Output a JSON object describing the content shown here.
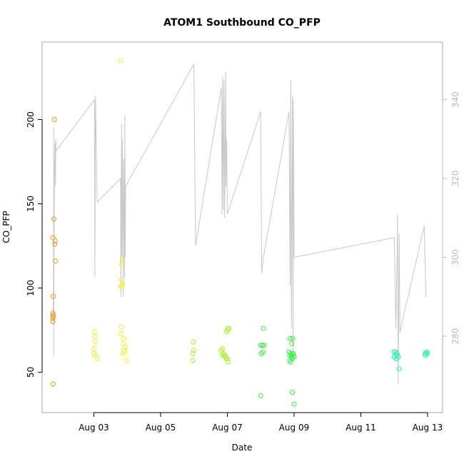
{
  "chart_data": {
    "type": "scatter",
    "title": "ATOM1 Southbound CO_PFP",
    "xlabel": "Date",
    "ylabel": "CO_PFP",
    "x_ticks": [
      "Aug 03",
      "Aug 05",
      "Aug 07",
      "Aug 09",
      "Aug 11",
      "Aug 13"
    ],
    "x_tick_days": [
      3,
      5,
      7,
      9,
      11,
      13
    ],
    "x_range": [
      1.45,
      13.45
    ],
    "y_ticks": [
      50,
      100,
      150,
      200
    ],
    "y_range": [
      26,
      246
    ],
    "y2_ticks": [
      280,
      300,
      320,
      340
    ],
    "y2_range": [
      260.6,
      354.6
    ],
    "grid": false,
    "colors": {
      "axis": "#000000",
      "frame": "#aaaaaa",
      "line": "#c8c8c8",
      "secondary_axis": "#bbbbbb"
    },
    "series": [
      {
        "color": "#e8961e",
        "points": [
          [
            1.78,
            43
          ],
          [
            1.77,
            80
          ],
          [
            1.77,
            82
          ],
          [
            1.78,
            83
          ],
          [
            1.78,
            84
          ],
          [
            1.77,
            85
          ],
          [
            1.78,
            95
          ],
          [
            1.85,
            116
          ],
          [
            1.83,
            126
          ],
          [
            1.84,
            128
          ],
          [
            1.77,
            130
          ],
          [
            1.8,
            141
          ],
          [
            1.82,
            200
          ]
        ]
      },
      {
        "color": "#eef032",
        "points": [
          [
            3.02,
            74
          ],
          [
            3.03,
            71
          ],
          [
            3.05,
            68
          ],
          [
            3.0,
            64
          ],
          [
            3.0,
            61
          ],
          [
            3.05,
            60
          ],
          [
            3.1,
            58
          ],
          [
            3.8,
            235
          ],
          [
            3.85,
            117
          ],
          [
            3.83,
            114
          ],
          [
            3.82,
            105
          ],
          [
            3.8,
            101
          ],
          [
            3.83,
            101
          ],
          [
            3.87,
            102
          ],
          [
            3.82,
            77
          ],
          [
            3.8,
            73
          ],
          [
            3.9,
            70
          ],
          [
            3.88,
            67
          ],
          [
            3.95,
            65
          ],
          [
            3.9,
            63
          ],
          [
            3.93,
            62
          ],
          [
            3.87,
            61
          ],
          [
            3.98,
            57
          ]
        ]
      },
      {
        "color": "#a8f030",
        "points": [
          [
            5.98,
            68
          ],
          [
            5.99,
            63
          ],
          [
            5.97,
            61
          ],
          [
            5.96,
            57
          ],
          [
            6.82,
            63
          ],
          [
            6.86,
            64
          ],
          [
            6.88,
            61
          ],
          [
            6.85,
            60
          ],
          [
            6.9,
            60
          ],
          [
            6.95,
            59
          ],
          [
            6.93,
            60
          ],
          [
            7.0,
            58
          ],
          [
            6.97,
            58
          ],
          [
            7.02,
            56
          ],
          [
            7.0,
            75
          ],
          [
            7.05,
            76
          ],
          [
            7.03,
            76
          ],
          [
            6.98,
            74
          ]
        ]
      },
      {
        "color": "#38f040",
        "points": [
          [
            8.0,
            36
          ],
          [
            8.08,
            76
          ],
          [
            8.05,
            66
          ],
          [
            8.0,
            66
          ],
          [
            8.1,
            66
          ],
          [
            8.02,
            61
          ],
          [
            8.07,
            62
          ],
          [
            8.88,
            70
          ],
          [
            8.95,
            70
          ],
          [
            8.93,
            67
          ],
          [
            8.85,
            62
          ],
          [
            8.9,
            61
          ],
          [
            8.87,
            60
          ],
          [
            8.93,
            60
          ],
          [
            8.97,
            61
          ],
          [
            8.92,
            59
          ],
          [
            8.95,
            58
          ],
          [
            8.87,
            57
          ],
          [
            8.9,
            56
          ],
          [
            8.95,
            38
          ],
          [
            9.0,
            31
          ],
          [
            9.0,
            59
          ],
          [
            8.98,
            60
          ],
          [
            8.97,
            61
          ]
        ]
      },
      {
        "color": "#2ef0b4",
        "points": [
          [
            12.0,
            62
          ],
          [
            12.05,
            62
          ],
          [
            12.08,
            61
          ],
          [
            12.03,
            60
          ],
          [
            12.1,
            60
          ],
          [
            12.0,
            59
          ],
          [
            12.06,
            58
          ],
          [
            12.12,
            59
          ],
          [
            12.15,
            52
          ],
          [
            12.93,
            60
          ],
          [
            12.95,
            61
          ],
          [
            12.97,
            62
          ],
          [
            13.0,
            61
          ],
          [
            12.98,
            62
          ],
          [
            12.93,
            61
          ]
        ]
      }
    ],
    "line_series": {
      "axis": "right",
      "color": "#c8c8c8",
      "points": [
        [
          1.78,
          286
        ],
        [
          1.79,
          290
        ],
        [
          1.8,
          333
        ],
        [
          1.8,
          275
        ],
        [
          1.81,
          310
        ],
        [
          1.82,
          320
        ],
        [
          1.83,
          325
        ],
        [
          1.84,
          329
        ],
        [
          1.85,
          318
        ],
        [
          1.86,
          330
        ],
        [
          1.87,
          327
        ],
        [
          3.02,
          340
        ],
        [
          3.03,
          295
        ],
        [
          3.05,
          341
        ],
        [
          3.1,
          314
        ],
        [
          3.8,
          320
        ],
        [
          3.81,
          290
        ],
        [
          3.83,
          334
        ],
        [
          3.84,
          300
        ],
        [
          3.86,
          330
        ],
        [
          3.88,
          290
        ],
        [
          3.9,
          325
        ],
        [
          3.92,
          295
        ],
        [
          3.93,
          336
        ],
        [
          3.94,
          300
        ],
        [
          3.95,
          318
        ],
        [
          6.0,
          349
        ],
        [
          6.02,
          328
        ],
        [
          6.05,
          303
        ],
        [
          6.82,
          343
        ],
        [
          6.84,
          311
        ],
        [
          6.86,
          346
        ],
        [
          6.88,
          312
        ],
        [
          6.9,
          345
        ],
        [
          6.92,
          310
        ],
        [
          6.95,
          347
        ],
        [
          6.96,
          318
        ],
        [
          6.98,
          330
        ],
        [
          7.0,
          311
        ],
        [
          8.0,
          337
        ],
        [
          8.03,
          296
        ],
        [
          8.08,
          300
        ],
        [
          8.85,
          337
        ],
        [
          8.88,
          293
        ],
        [
          8.9,
          345
        ],
        [
          8.92,
          282
        ],
        [
          8.95,
          341
        ],
        [
          8.97,
          275
        ],
        [
          8.98,
          340
        ],
        [
          9.0,
          300
        ],
        [
          12.0,
          305
        ],
        [
          12.05,
          282
        ],
        [
          12.08,
          298
        ],
        [
          12.1,
          311
        ],
        [
          12.12,
          268
        ],
        [
          12.15,
          306
        ],
        [
          12.17,
          281
        ],
        [
          12.9,
          308
        ],
        [
          12.95,
          290
        ]
      ]
    }
  }
}
